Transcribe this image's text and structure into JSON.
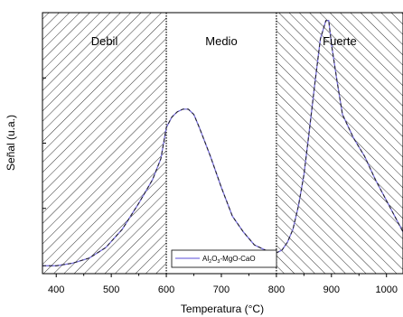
{
  "chart_data": {
    "type": "line",
    "xlabel": "Temperatura (°C)",
    "ylabel": "Señal (u.a.)",
    "xlim": [
      375,
      1030
    ],
    "ylim": [
      0,
      1
    ],
    "x_ticks": [
      400,
      500,
      600,
      700,
      800,
      900,
      1000
    ],
    "y_ticks_labeled": false,
    "grid": false,
    "regions": [
      {
        "label": "Debil",
        "from": 375,
        "to": 600,
        "pattern": "hatch-forward"
      },
      {
        "label": "Medio",
        "from": 600,
        "to": 800,
        "pattern": "none"
      },
      {
        "label": "Fuerte",
        "from": 800,
        "to": 1030,
        "pattern": "hatch-back"
      }
    ],
    "legend": {
      "position": "bottom-center",
      "entries": [
        {
          "text_parts": [
            "Al",
            "2",
            "O",
            "3",
            "-MgO-CaO"
          ]
        }
      ]
    },
    "series": [
      {
        "color": "#7b72e0",
        "style": "solid",
        "x": [
          375,
          400,
          430,
          460,
          490,
          520,
          550,
          575,
          590,
          600,
          610,
          620,
          630,
          640,
          650,
          660,
          680,
          700,
          720,
          740,
          760,
          780,
          790,
          800,
          810,
          820,
          830,
          840,
          850,
          860,
          870,
          880,
          890,
          895,
          900,
          910,
          920,
          940,
          960,
          980,
          1000,
          1020,
          1030
        ],
        "y": [
          0.03,
          0.03,
          0.04,
          0.06,
          0.1,
          0.17,
          0.27,
          0.36,
          0.44,
          0.56,
          0.6,
          0.62,
          0.63,
          0.63,
          0.61,
          0.56,
          0.45,
          0.33,
          0.22,
          0.16,
          0.11,
          0.09,
          0.08,
          0.08,
          0.09,
          0.12,
          0.17,
          0.26,
          0.38,
          0.55,
          0.73,
          0.9,
          0.97,
          0.97,
          0.88,
          0.74,
          0.61,
          0.52,
          0.45,
          0.36,
          0.28,
          0.2,
          0.16
        ]
      },
      {
        "color": "#222222",
        "style": "dashed",
        "x": [
          375,
          400,
          430,
          460,
          490,
          520,
          550,
          575,
          590,
          600,
          610,
          620,
          630,
          640,
          650,
          660,
          680,
          700,
          720,
          740,
          760,
          780,
          790,
          800,
          810,
          820,
          830,
          840,
          850,
          860,
          870,
          880,
          890,
          895,
          900,
          910,
          920,
          940,
          960,
          980,
          1000,
          1020,
          1030
        ],
        "y": [
          0.03,
          0.03,
          0.04,
          0.06,
          0.1,
          0.17,
          0.27,
          0.36,
          0.44,
          0.56,
          0.6,
          0.62,
          0.63,
          0.63,
          0.61,
          0.56,
          0.45,
          0.33,
          0.22,
          0.16,
          0.11,
          0.09,
          0.08,
          0.08,
          0.09,
          0.12,
          0.17,
          0.26,
          0.38,
          0.55,
          0.73,
          0.9,
          0.97,
          0.97,
          0.88,
          0.74,
          0.61,
          0.52,
          0.45,
          0.36,
          0.28,
          0.2,
          0.16
        ]
      }
    ]
  }
}
